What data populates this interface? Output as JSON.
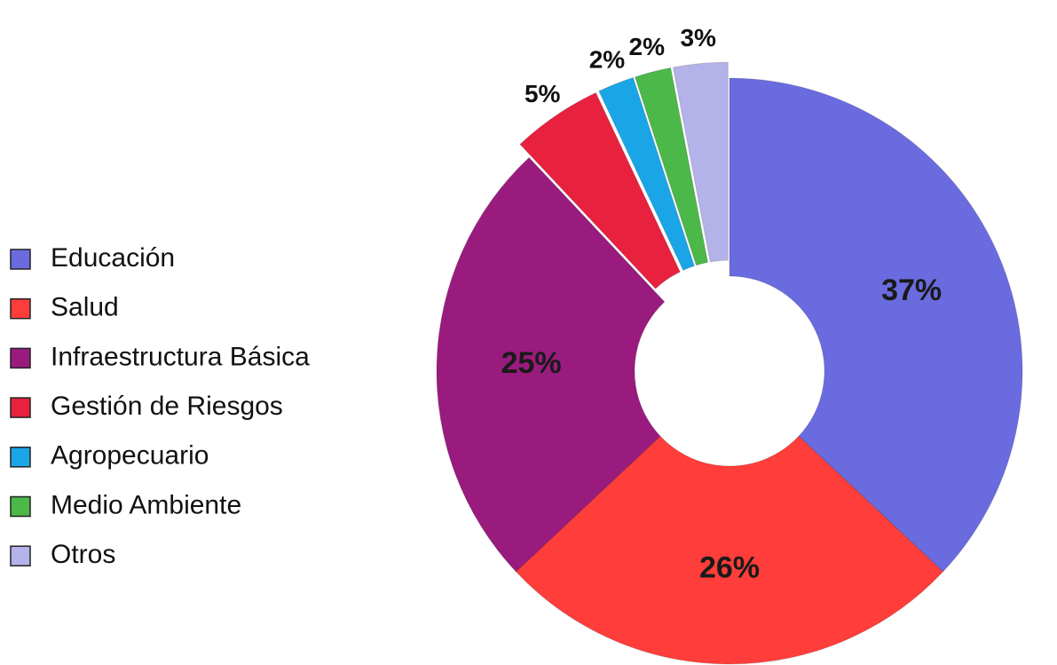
{
  "chart_data": {
    "type": "donut",
    "categories": [
      "Educación",
      "Salud",
      "Infraestructura Básica",
      "Gestión de Riesgos",
      "Agropecuario",
      "Medio Ambiente",
      "Otros"
    ],
    "values": [
      37,
      26,
      25,
      5,
      2,
      2,
      3
    ],
    "value_labels": [
      "37%",
      "26%",
      "25%",
      "5%",
      "2%",
      "2%",
      "3%"
    ],
    "colors": [
      "#6b6be0",
      "#ff3d3a",
      "#9a1b7e",
      "#e8213f",
      "#1aa6e6",
      "#4cb84a",
      "#b3b3ea"
    ],
    "legend": "left"
  }
}
